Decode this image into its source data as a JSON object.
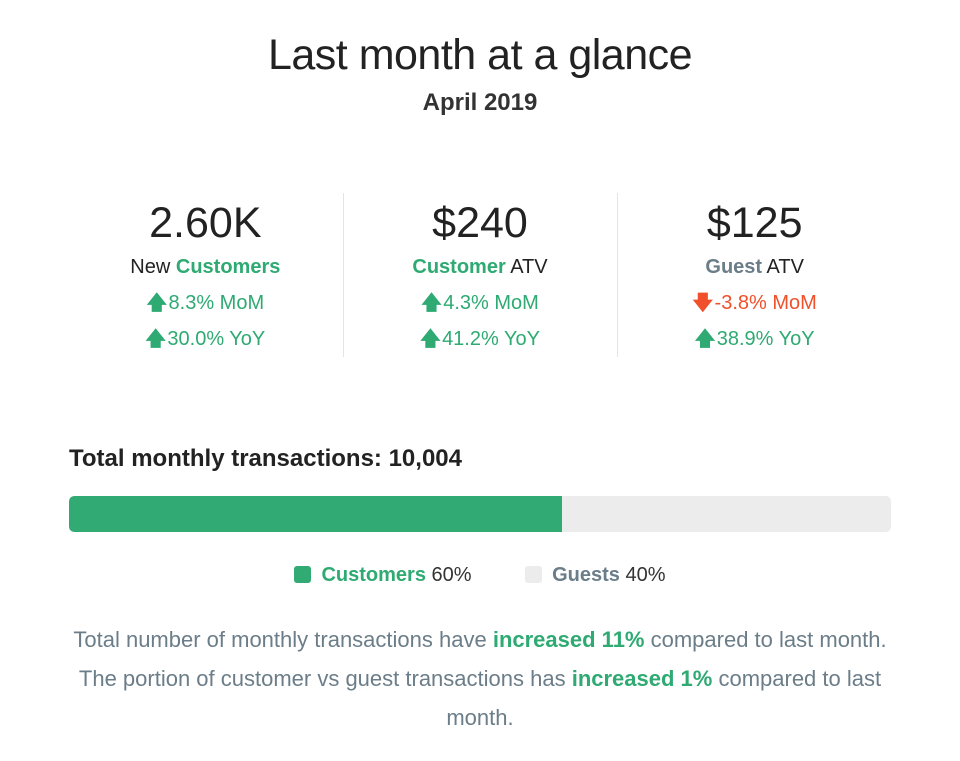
{
  "header": {
    "title": "Last month at a glance",
    "subtitle": "April 2019"
  },
  "colors": {
    "green": "#2eaa72",
    "bar_green": "#31aa74",
    "red": "#f0502a",
    "gray_text": "#6b7d88",
    "bar_track": "#ececec"
  },
  "stats": [
    {
      "value": "2.60K",
      "label_prefix": "New ",
      "label_highlight": "Customers",
      "label_suffix": "",
      "changes": [
        {
          "direction": "up",
          "icon": "arrow-up-icon",
          "text": "8.3% MoM"
        },
        {
          "direction": "up",
          "icon": "arrow-up-icon",
          "text": "30.0% YoY"
        }
      ]
    },
    {
      "value": "$240",
      "label_prefix": "",
      "label_highlight": "Customer",
      "label_suffix": " ATV",
      "changes": [
        {
          "direction": "up",
          "icon": "arrow-up-icon",
          "text": "4.3% MoM"
        },
        {
          "direction": "up",
          "icon": "arrow-up-icon",
          "text": "41.2% YoY"
        }
      ]
    },
    {
      "value": "$125",
      "label_prefix": "",
      "label_highlight": "Guest",
      "label_suffix": " ATV",
      "changes": [
        {
          "direction": "down",
          "icon": "arrow-down-icon",
          "text": "-3.8% MoM"
        },
        {
          "direction": "up",
          "icon": "arrow-up-icon",
          "text": "38.9% YoY"
        }
      ]
    }
  ],
  "transactions": {
    "heading": "Total monthly transactions: 10,004",
    "customers_share_percent": 60,
    "legend": [
      {
        "name": "Customers",
        "pct": " 60%"
      },
      {
        "name": "Guests",
        "pct": " 40%"
      }
    ]
  },
  "summary": {
    "part1": "Total number of monthly transactions have ",
    "hl1": "increased 11%",
    "part2": " compared to last month. The portion of customer vs guest transactions has ",
    "hl2": "increased 1%",
    "part3": " compared to last month."
  }
}
